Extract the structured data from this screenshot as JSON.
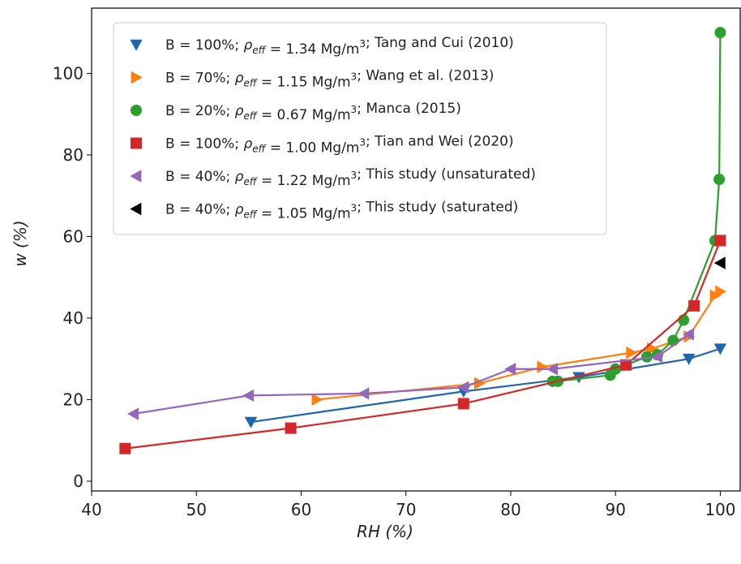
{
  "chart_data": {
    "type": "line",
    "xlabel": "RH (%)",
    "ylabel": "w (%)",
    "xlim": [
      40,
      101.9
    ],
    "ylim": [
      -2.4,
      116
    ],
    "xticks": [
      40,
      50,
      60,
      70,
      80,
      90,
      100
    ],
    "yticks": [
      0,
      20,
      40,
      60,
      80,
      100
    ],
    "grid": false,
    "legend": "upper left",
    "series": [
      {
        "name": "B = 100%; ρeff = 1.34 Mg/m³; Tang and Cui (2010)",
        "color": "#1f66b0",
        "marker": "triangle-down",
        "line": true,
        "x": [
          55.2,
          75.5,
          86.5,
          97,
          100
        ],
        "values": [
          14.5,
          22,
          25.5,
          30,
          32.5
        ]
      },
      {
        "name": "B = 70%; ρeff = 1.15 Mg/m³; Wang et al. (2013)",
        "color": "#ff7f0e",
        "marker": "triangle-right",
        "line": true,
        "x": [
          61.5,
          77,
          83,
          91.5,
          93.5,
          97,
          99.5,
          100
        ],
        "values": [
          20,
          24,
          28,
          31.5,
          32.5,
          35.5,
          45.5,
          46.5
        ]
      },
      {
        "name": "B = 20%; ρeff = 0.67 Mg/m³; Manca (2015)",
        "color": "#2ca02c",
        "marker": "circle",
        "line": true,
        "x": [
          84,
          84.5,
          89.5,
          90,
          93,
          94,
          95.5,
          96.5,
          99.5,
          99.9,
          100
        ],
        "values": [
          24.5,
          24.5,
          26,
          27.5,
          30.5,
          31,
          34.5,
          39.5,
          59,
          74,
          110
        ]
      },
      {
        "name": "B = 100%; ρeff = 1.00 Mg/m³; Tian and Wei (2020)",
        "color": "#d62728",
        "marker": "square",
        "line": true,
        "x": [
          43.2,
          59,
          75.5,
          91,
          97.5,
          100
        ],
        "values": [
          8,
          13,
          19,
          28.5,
          43,
          59
        ]
      },
      {
        "name": "B = 40%; ρeff = 1.22 Mg/m³; This study (unsaturated)",
        "color": "#9467bd",
        "marker": "triangle-left",
        "line": true,
        "x": [
          44,
          55,
          66,
          75.5,
          80,
          84,
          94,
          97
        ],
        "values": [
          16.5,
          21,
          21.5,
          23,
          27.5,
          27.5,
          30.5,
          36
        ]
      },
      {
        "name": "B = 40%; ρeff = 1.05 Mg/m³; This study (saturated)",
        "color": "#000000",
        "marker": "triangle-left",
        "line": false,
        "x": [
          100
        ],
        "values": [
          53.5
        ]
      }
    ]
  }
}
